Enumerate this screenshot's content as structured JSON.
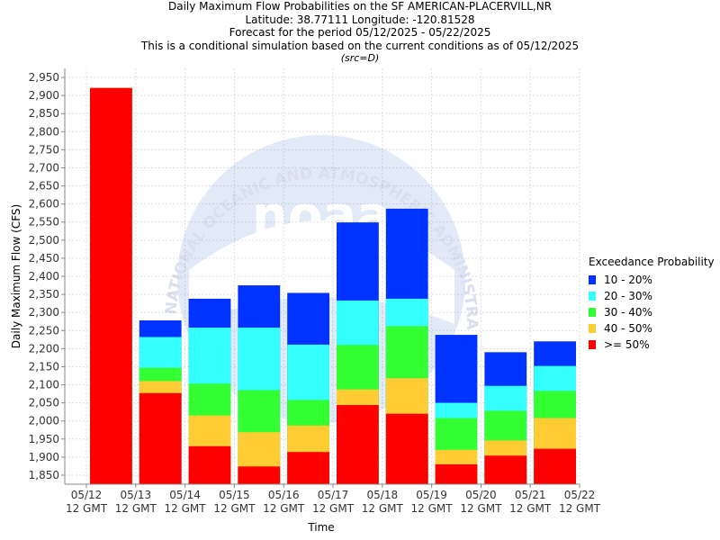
{
  "header": {
    "title": "Daily Maximum Flow Probabilities on the SF AMERICAN-PLACERVILL,NR",
    "location": "Latitude: 38.77111 Longitude: -120.81528",
    "period": "Forecast for the period 05/12/2025 - 05/22/2025",
    "condition": "This is a conditional simulation based on the current conditions as of 05/12/2025",
    "source": "(src=D)"
  },
  "watermark": {
    "logo_text": "noaa",
    "ring_text": "NATIONAL OCEANIC AND ATMOSPHERIC ADMINISTRATION"
  },
  "legend": {
    "title": "Exceedance Probability",
    "items": [
      {
        "label": "10 - 20%",
        "color": "#0033ff"
      },
      {
        "label": "20 - 30%",
        "color": "#33ffff"
      },
      {
        "label": "30 - 40%",
        "color": "#33ff33"
      },
      {
        "label": "40 - 50%",
        "color": "#ffcc33"
      },
      {
        "label": ">= 50%",
        "color": "#ff0000"
      }
    ]
  },
  "chart_data": {
    "type": "bar",
    "stacked": true,
    "xlabel": "Time",
    "ylabel": "Daily Maximum Flow (CFS)",
    "ylim": [
      1825,
      2975
    ],
    "yticks": [
      1850,
      1900,
      1950,
      2000,
      2050,
      2100,
      2150,
      2200,
      2250,
      2300,
      2350,
      2400,
      2450,
      2500,
      2550,
      2600,
      2650,
      2700,
      2750,
      2800,
      2850,
      2900,
      2950
    ],
    "ytick_labels": [
      "1,850",
      "1,900",
      "1,950",
      "2,000",
      "2,050",
      "2,100",
      "2,150",
      "2,200",
      "2,250",
      "2,300",
      "2,350",
      "2,400",
      "2,450",
      "2,500",
      "2,550",
      "2,600",
      "2,650",
      "2,700",
      "2,750",
      "2,800",
      "2,850",
      "2,900",
      "2,950"
    ],
    "xticks": [
      {
        "date": "05/12",
        "time": "12 GMT"
      },
      {
        "date": "05/13",
        "time": "12 GMT"
      },
      {
        "date": "05/14",
        "time": "12 GMT"
      },
      {
        "date": "05/15",
        "time": "12 GMT"
      },
      {
        "date": "05/16",
        "time": "12 GMT"
      },
      {
        "date": "05/17",
        "time": "12 GMT"
      },
      {
        "date": "05/18",
        "time": "12 GMT"
      },
      {
        "date": "05/19",
        "time": "12 GMT"
      },
      {
        "date": "05/20",
        "time": "12 GMT"
      },
      {
        "date": "05/21",
        "time": "12 GMT"
      },
      {
        "date": "05/22",
        "time": "12 GMT"
      }
    ],
    "grid": true,
    "legend_position": "right",
    "series_order_bottom_to_top": [
      ">= 50%",
      "40 - 50%",
      "30 - 40%",
      "20 - 30%",
      "10 - 20%"
    ],
    "bars": [
      {
        "period": "05/12 - 05/13",
        "ge50": 2921,
        "p40_50": 2921,
        "p30_40": 2921,
        "p20_30": 2921,
        "p10_20": 2921
      },
      {
        "period": "05/13 - 05/14",
        "ge50": 2077,
        "p40_50": 2110,
        "p30_40": 2147,
        "p20_30": 2232,
        "p10_20": 2278
      },
      {
        "period": "05/14 - 05/15",
        "ge50": 1930,
        "p40_50": 2015,
        "p30_40": 2103,
        "p20_30": 2258,
        "p10_20": 2338
      },
      {
        "period": "05/15 - 05/16",
        "ge50": 1874,
        "p40_50": 1969,
        "p30_40": 2085,
        "p20_30": 2258,
        "p10_20": 2375
      },
      {
        "period": "05/16 - 05/17",
        "ge50": 1914,
        "p40_50": 1987,
        "p30_40": 2058,
        "p20_30": 2211,
        "p10_20": 2354
      },
      {
        "period": "05/17 - 05/18",
        "ge50": 2044,
        "p40_50": 2087,
        "p30_40": 2210,
        "p20_30": 2333,
        "p10_20": 2549
      },
      {
        "period": "05/18 - 05/19",
        "ge50": 2020,
        "p40_50": 2118,
        "p30_40": 2262,
        "p20_30": 2338,
        "p10_20": 2587
      },
      {
        "period": "05/19 - 05/20",
        "ge50": 1880,
        "p40_50": 1920,
        "p30_40": 2008,
        "p20_30": 2050,
        "p10_20": 2238
      },
      {
        "period": "05/20 - 05/21",
        "ge50": 1904,
        "p40_50": 1946,
        "p30_40": 2028,
        "p20_30": 2097,
        "p10_20": 2190
      },
      {
        "period": "05/21 - 05/22",
        "ge50": 1923,
        "p40_50": 2008,
        "p30_40": 2083,
        "p20_30": 2152,
        "p10_20": 2220
      }
    ]
  }
}
